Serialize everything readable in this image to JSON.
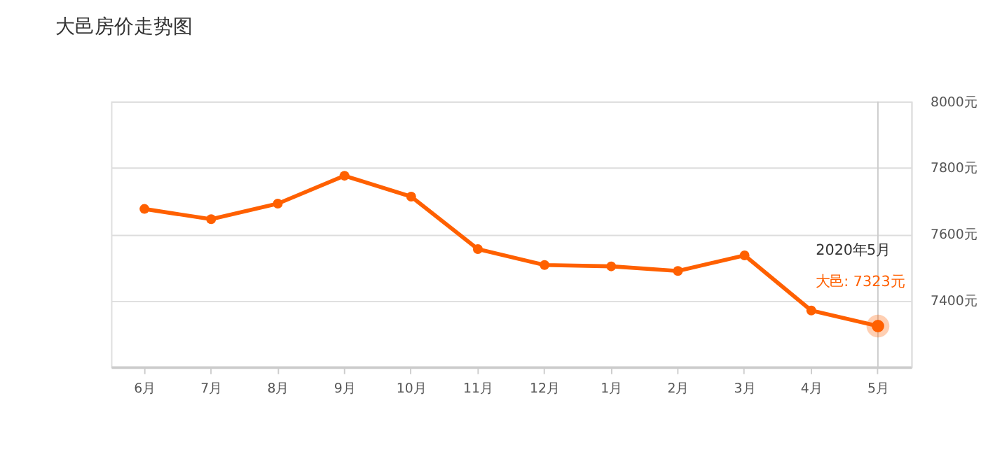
{
  "chart_data": {
    "type": "line",
    "title": "大邑房价走势图",
    "categories": [
      "6月",
      "7月",
      "8月",
      "9月",
      "10月",
      "11月",
      "12月",
      "1月",
      "2月",
      "3月",
      "4月",
      "5月"
    ],
    "series": [
      {
        "color": "#ff6000",
        "values": [
          7676,
          7645,
          7692,
          7776,
          7713,
          7555,
          7507,
          7503,
          7489,
          7536,
          7370,
          7323
        ]
      }
    ],
    "ylim": [
      7200,
      8000
    ],
    "yticks": [
      {
        "value": 7200,
        "label": null
      },
      {
        "value": 7400,
        "label": "7400元"
      },
      {
        "value": 7600,
        "label": "7600元"
      },
      {
        "value": 7800,
        "label": "7800元"
      },
      {
        "value": 8000,
        "label": "8000元"
      }
    ],
    "grid": "y",
    "marker": "circle",
    "line_style": "solid",
    "ref_lines": [
      {
        "axis": "x",
        "value": "5月",
        "color": "#cccccc"
      }
    ],
    "annotations": [
      "2020年5月",
      "大邑:  7323元"
    ]
  }
}
